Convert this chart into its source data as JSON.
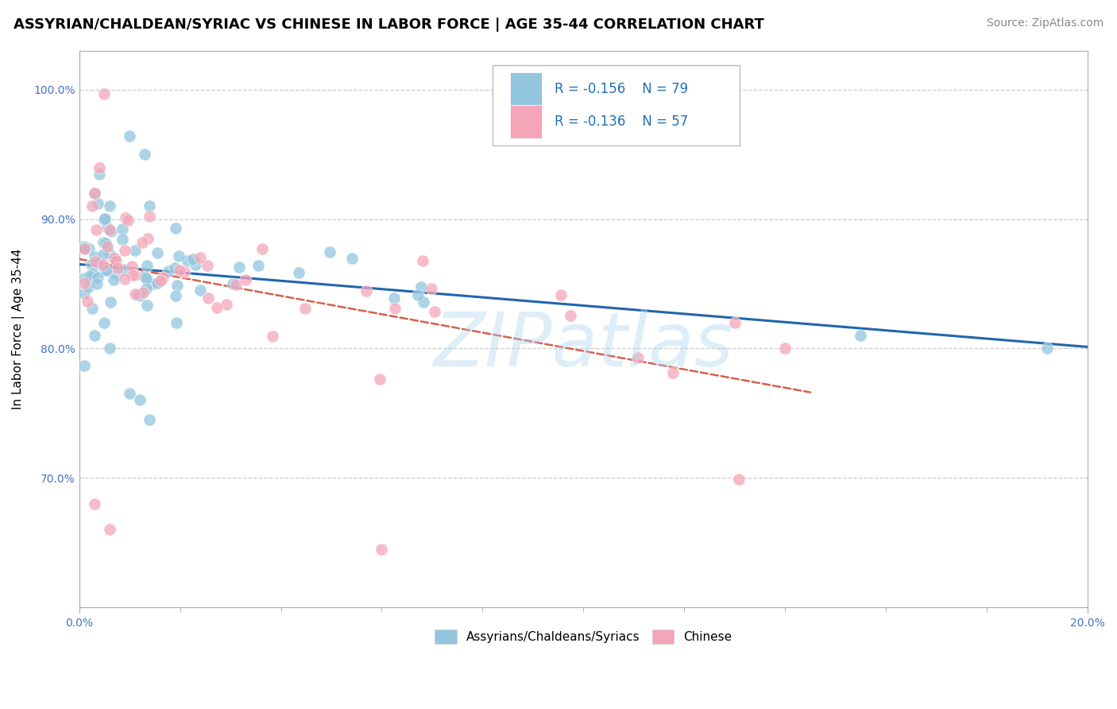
{
  "title": "ASSYRIAN/CHALDEAN/SYRIAC VS CHINESE IN LABOR FORCE | AGE 35-44 CORRELATION CHART",
  "source_text": "Source: ZipAtlas.com",
  "ylabel": "In Labor Force | Age 35-44",
  "xlim": [
    0.0,
    0.2
  ],
  "ylim": [
    0.6,
    1.03
  ],
  "legend_r1": "R = -0.156",
  "legend_n1": "N = 79",
  "legend_r2": "R = -0.136",
  "legend_n2": "N = 57",
  "blue_color": "#92c5de",
  "pink_color": "#f4a6b8",
  "blue_line_color": "#2166ac",
  "pink_line_color": "#d6604d",
  "watermark_text": "ZIPatlas",
  "title_fontsize": 13,
  "axis_label_fontsize": 11,
  "tick_fontsize": 10,
  "legend_fontsize": 12,
  "source_fontsize": 10,
  "background_color": "#ffffff",
  "grid_color": "#cccccc",
  "blue_intercept": 0.863,
  "blue_slope": -0.2,
  "pink_intercept": 0.872,
  "pink_slope": -0.65,
  "blue_line_xmax": 0.2,
  "pink_line_xmax": 0.145
}
